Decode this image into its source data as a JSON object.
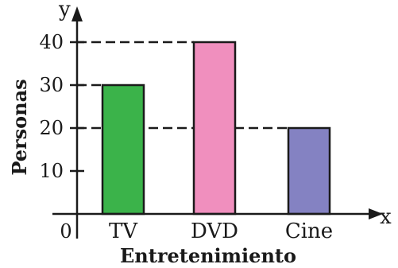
{
  "chart_data": {
    "type": "bar",
    "categories": [
      "TV",
      "DVD",
      "Cine"
    ],
    "values": [
      30,
      40,
      20
    ],
    "colors": [
      "#3bb34a",
      "#f08fbe",
      "#8482c2"
    ],
    "title": "",
    "xlabel": "Entretenimiento",
    "ylabel": "Personas",
    "x_axis_letter": "x",
    "y_axis_letter": "y",
    "origin_label": "0",
    "yticks": [
      10,
      20,
      30,
      40
    ],
    "ylim": [
      0,
      46
    ],
    "grid": "dashed reference lines at bar tops",
    "legend": "none"
  }
}
